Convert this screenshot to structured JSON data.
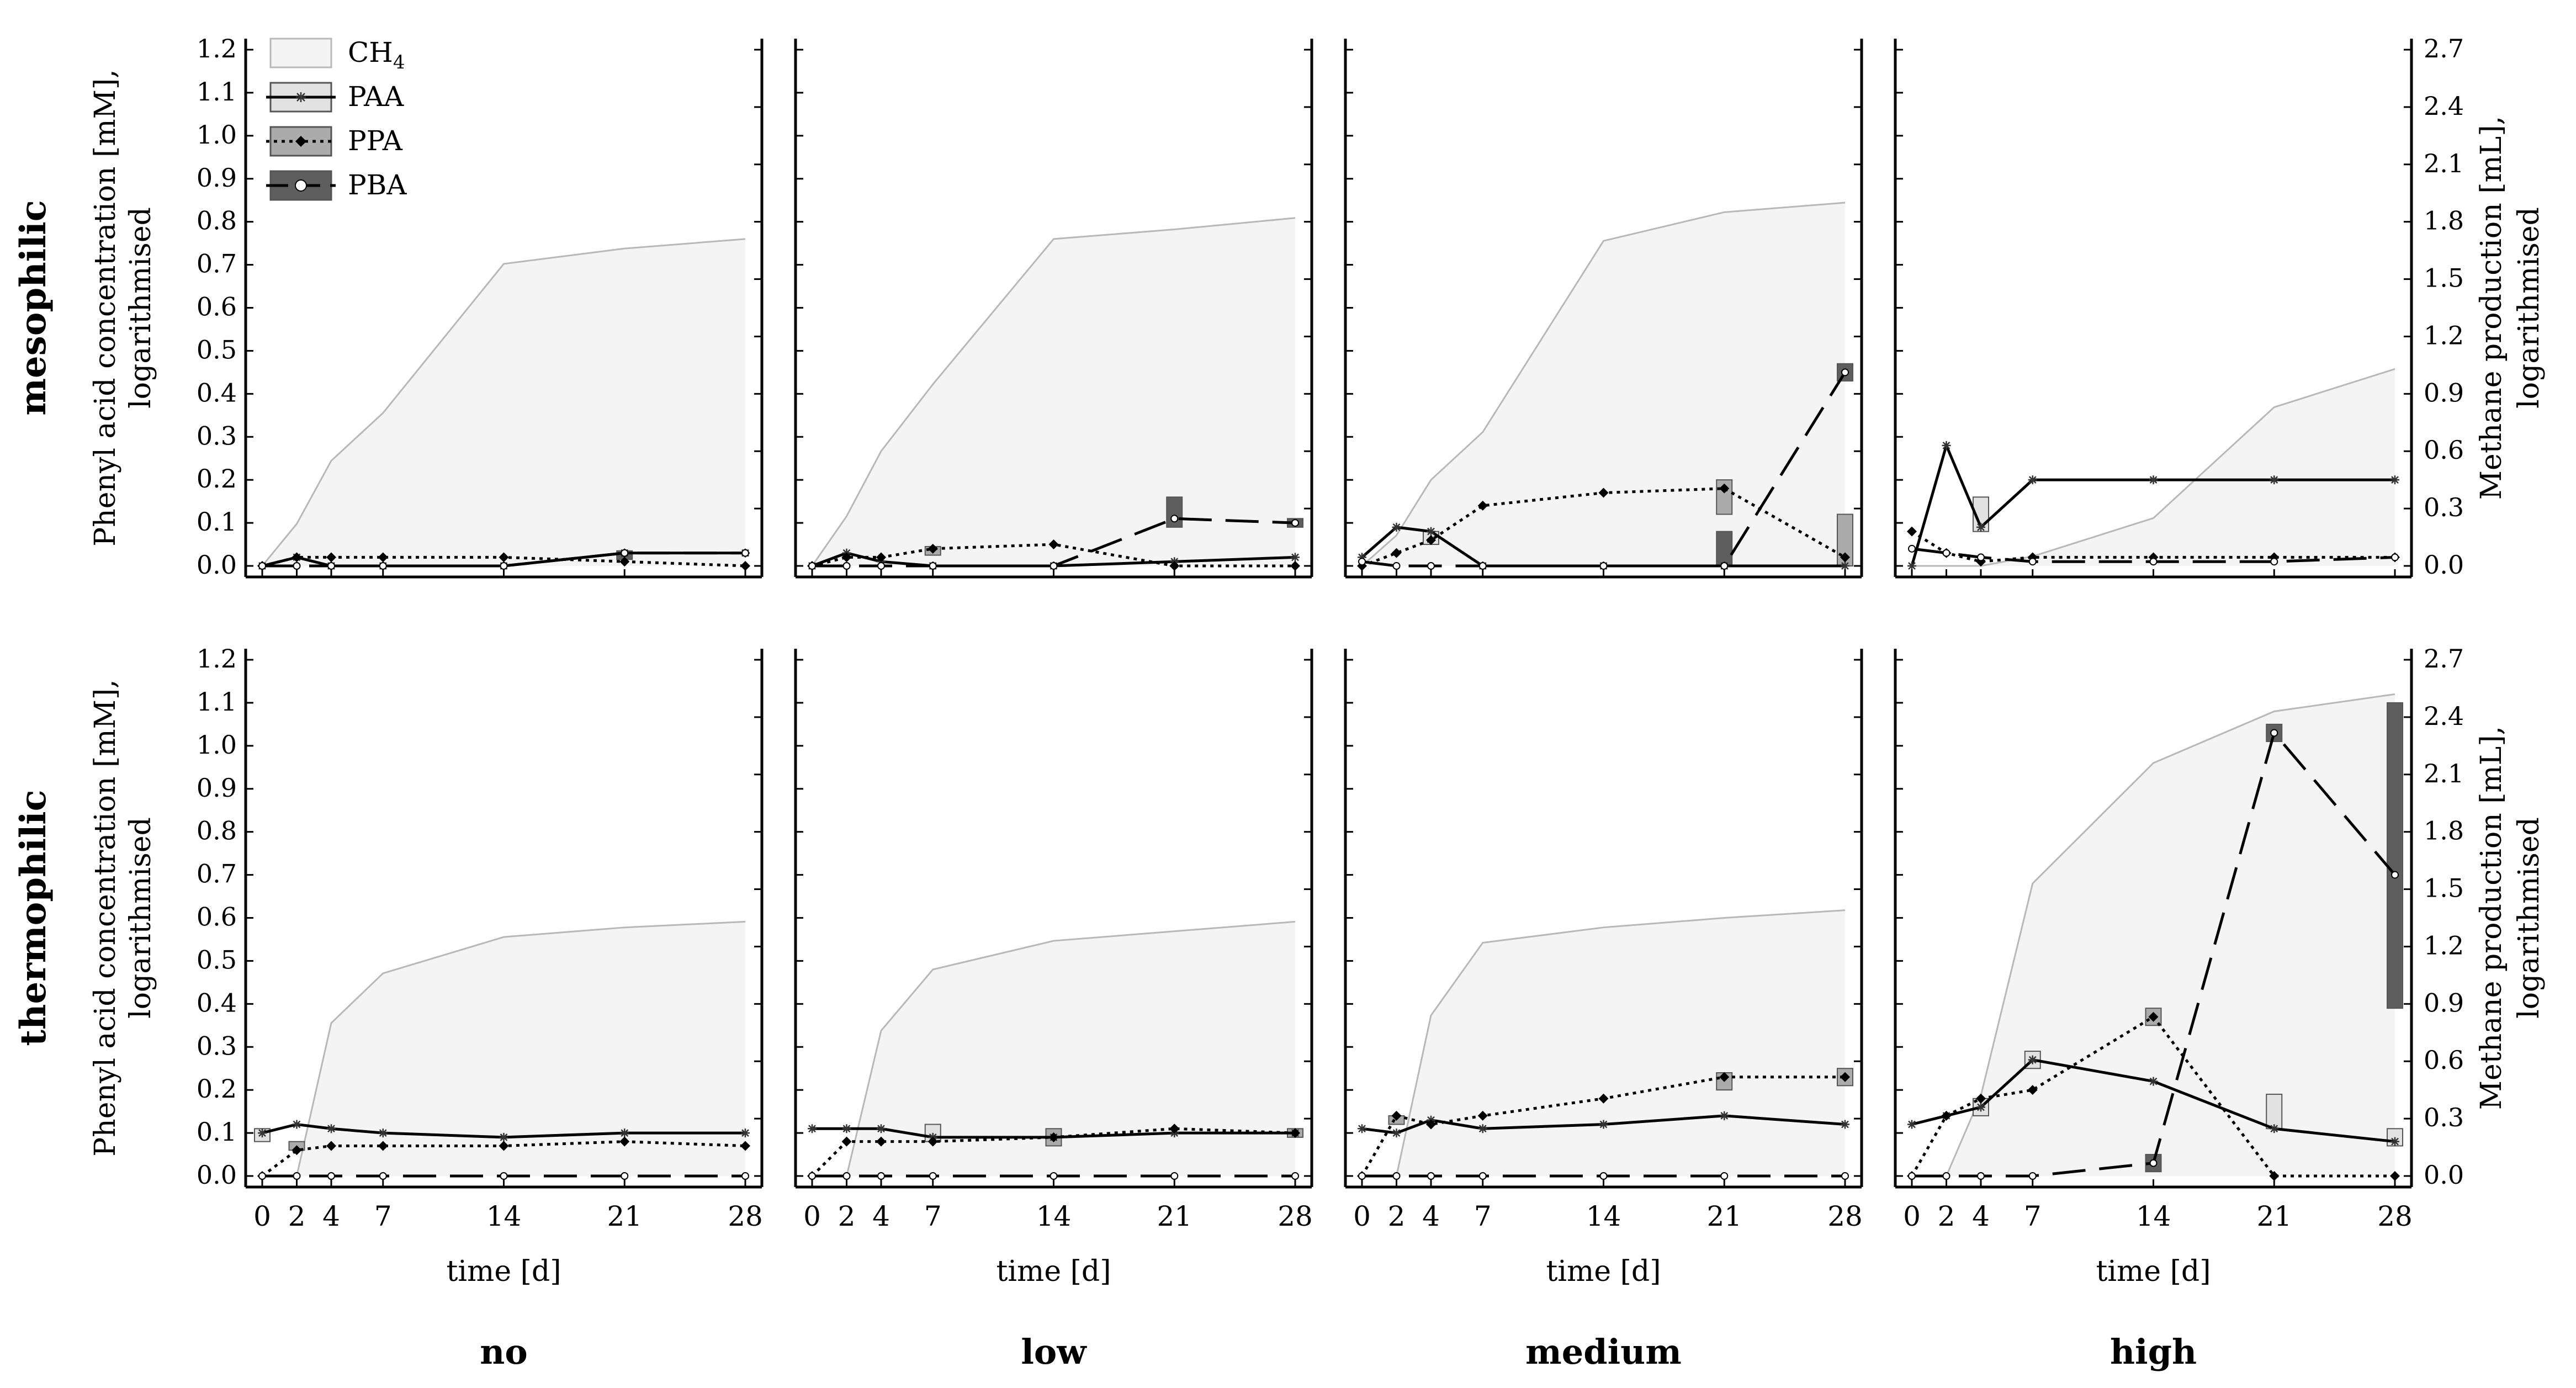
{
  "figure": {
    "row_labels": [
      "mesophilic",
      "thermophilic"
    ],
    "column_labels": [
      "no",
      "low",
      "medium",
      "high"
    ],
    "y_label_left_line1": "Phenyl acid concentration [mM],",
    "y_label_left_line2": "logarithmised",
    "y_label_right_line1": "Methane production [mL],",
    "y_label_right_line2": "logarithmised",
    "x_label": "time [d]",
    "left_axis_ticks": [
      "0.0",
      "0.1",
      "0.2",
      "0.3",
      "0.4",
      "0.5",
      "0.6",
      "0.7",
      "0.8",
      "0.9",
      "1.0",
      "1.1",
      "1.2"
    ],
    "right_axis_ticks": [
      "0.0",
      "0.3",
      "0.6",
      "0.9",
      "1.2",
      "1.5",
      "1.8",
      "2.1",
      "2.4",
      "2.7"
    ],
    "x_ticks": [
      "0",
      "2",
      "4",
      "7",
      "14",
      "21",
      "28"
    ],
    "legend": [
      {
        "label": "CH",
        "sub": "4",
        "key": "ch4"
      },
      {
        "label": "PAA",
        "key": "paa"
      },
      {
        "label": "PPA",
        "key": "ppa"
      },
      {
        "label": "PBA",
        "key": "pba"
      }
    ]
  },
  "colors": {
    "ch4_fill": "#f4f4f4",
    "ch4_line": "#b8b8b8",
    "paa_box": "#e2e2e2",
    "ppa_box": "#ababab",
    "pba_box": "#5e5e5e",
    "line": "#000000"
  },
  "chart_data": {
    "type": "line",
    "layout": "2x4 small multiples (rows: temperature regime, columns: phenyl acid dose)",
    "x": [
      0,
      2,
      4,
      7,
      14,
      21,
      28
    ],
    "xlabel": "time [d]",
    "ylabel": "Phenyl acid concentration [mM], logarithmised",
    "ylim": [
      0,
      1.2
    ],
    "y2label": "Methane production [mL], logarithmised",
    "y2lim": [
      0,
      2.7
    ],
    "panels": [
      {
        "row": "mesophilic",
        "col": "no",
        "ch4": [
          0,
          0.22,
          0.55,
          0.8,
          1.58,
          1.66,
          1.71
        ],
        "paa": [
          0.0,
          0.02,
          0.0,
          0.0,
          0.0,
          0.03,
          0.03
        ],
        "ppa": [
          0.0,
          0.02,
          0.02,
          0.02,
          0.02,
          0.01,
          0.0
        ],
        "pba": [
          0.0,
          0.0,
          0.0,
          0.0,
          0.0,
          0.03,
          0.03
        ],
        "boxes": [
          {
            "series": "pba",
            "x": 21,
            "y": 0.025,
            "range": [
              0.015,
              0.035
            ]
          }
        ]
      },
      {
        "row": "mesophilic",
        "col": "low",
        "ch4": [
          0,
          0.26,
          0.6,
          0.95,
          1.71,
          1.76,
          1.82
        ],
        "paa": [
          0.0,
          0.03,
          0.01,
          0.0,
          0.0,
          0.01,
          0.02
        ],
        "ppa": [
          0.0,
          0.02,
          0.02,
          0.04,
          0.05,
          0.0,
          0.0
        ],
        "pba": [
          0.0,
          0.0,
          0.0,
          0.0,
          0.0,
          0.11,
          0.1
        ],
        "boxes": [
          {
            "series": "ppa",
            "x": 7,
            "y": 0.035,
            "range": [
              0.025,
              0.045
            ]
          },
          {
            "series": "pba",
            "x": 21,
            "y": 0.125,
            "range": [
              0.09,
              0.16
            ]
          },
          {
            "series": "pba",
            "x": 28,
            "y": 0.1,
            "range": [
              0.09,
              0.11
            ]
          }
        ]
      },
      {
        "row": "mesophilic",
        "col": "medium",
        "ch4": [
          0,
          0.16,
          0.45,
          0.7,
          1.7,
          1.85,
          1.9
        ],
        "paa": [
          0.02,
          0.09,
          0.08,
          0.0,
          0.0,
          0.0,
          0.0
        ],
        "ppa": [
          0.0,
          0.03,
          0.06,
          0.14,
          0.17,
          0.18,
          0.02
        ],
        "pba": [
          0.01,
          0.0,
          0.0,
          0.0,
          0.0,
          0.0,
          0.45
        ],
        "boxes": [
          {
            "series": "paa",
            "x": 4,
            "y": 0.065,
            "range": [
              0.05,
              0.08
            ]
          },
          {
            "series": "ppa",
            "x": 21,
            "y": 0.16,
            "range": [
              0.12,
              0.2
            ]
          },
          {
            "series": "pba",
            "x": 21,
            "y": 0.04,
            "range": [
              0.0,
              0.08
            ]
          },
          {
            "series": "ppa",
            "x": 28,
            "y": 0.06,
            "range": [
              0.0,
              0.12
            ]
          },
          {
            "series": "pba",
            "x": 28,
            "y": 0.45,
            "range": [
              0.43,
              0.47
            ]
          }
        ]
      },
      {
        "row": "mesophilic",
        "col": "high",
        "ch4": [
          0,
          0,
          0,
          0.05,
          0.25,
          0.83,
          1.03
        ],
        "paa": [
          0.0,
          0.28,
          0.09,
          0.2,
          0.2,
          0.2,
          0.2
        ],
        "ppa": [
          0.08,
          0.03,
          0.01,
          0.02,
          0.02,
          0.02,
          0.02
        ],
        "pba": [
          0.04,
          0.03,
          0.02,
          0.01,
          0.01,
          0.01,
          0.02
        ],
        "boxes": [
          {
            "series": "paa",
            "x": 4,
            "y": 0.12,
            "range": [
              0.08,
              0.16
            ]
          }
        ]
      },
      {
        "row": "thermophilic",
        "col": "no",
        "ch4": [
          0,
          0,
          0.8,
          1.06,
          1.25,
          1.3,
          1.33
        ],
        "paa": [
          0.1,
          0.12,
          0.11,
          0.1,
          0.09,
          0.1,
          0.1
        ],
        "ppa": [
          0.0,
          0.06,
          0.07,
          0.07,
          0.07,
          0.08,
          0.07
        ],
        "pba": [
          0.0,
          0.0,
          0.0,
          0.0,
          0.0,
          0.0,
          0.0
        ],
        "boxes": [
          {
            "series": "paa",
            "x": 0,
            "y": 0.095,
            "range": [
              0.08,
              0.11
            ]
          },
          {
            "series": "ppa",
            "x": 2,
            "y": 0.07,
            "range": [
              0.06,
              0.08
            ]
          }
        ]
      },
      {
        "row": "thermophilic",
        "col": "low",
        "ch4": [
          0,
          0,
          0.76,
          1.08,
          1.23,
          1.28,
          1.33
        ],
        "paa": [
          0.11,
          0.11,
          0.11,
          0.09,
          0.09,
          0.1,
          0.1
        ],
        "ppa": [
          0.0,
          0.08,
          0.08,
          0.08,
          0.09,
          0.11,
          0.1
        ],
        "pba": [
          0.0,
          0.0,
          0.0,
          0.0,
          0.0,
          0.0,
          0.0
        ],
        "boxes": [
          {
            "series": "paa",
            "x": 7,
            "y": 0.1,
            "range": [
              0.08,
              0.12
            ]
          },
          {
            "series": "ppa",
            "x": 14,
            "y": 0.09,
            "range": [
              0.07,
              0.11
            ]
          },
          {
            "series": "ppa",
            "x": 28,
            "y": 0.1,
            "range": [
              0.09,
              0.11
            ]
          }
        ]
      },
      {
        "row": "thermophilic",
        "col": "medium",
        "ch4": [
          0,
          0,
          0.84,
          1.22,
          1.3,
          1.35,
          1.39
        ],
        "paa": [
          0.11,
          0.1,
          0.13,
          0.11,
          0.12,
          0.14,
          0.12
        ],
        "ppa": [
          0.0,
          0.14,
          0.12,
          0.14,
          0.18,
          0.23,
          0.23
        ],
        "pba": [
          0.0,
          0.0,
          0.0,
          0.0,
          0.0,
          0.0,
          0.0
        ],
        "boxes": [
          {
            "series": "ppa",
            "x": 2,
            "y": 0.13,
            "range": [
              0.12,
              0.14
            ]
          },
          {
            "series": "ppa",
            "x": 21,
            "y": 0.22,
            "range": [
              0.2,
              0.24
            ]
          },
          {
            "series": "ppa",
            "x": 28,
            "y": 0.23,
            "range": [
              0.21,
              0.25
            ]
          }
        ]
      },
      {
        "row": "thermophilic",
        "col": "high",
        "ch4": [
          0,
          0,
          0.42,
          1.53,
          2.16,
          2.43,
          2.52
        ],
        "paa": [
          0.12,
          0.14,
          0.16,
          0.27,
          0.22,
          0.11,
          0.08
        ],
        "ppa": [
          0.0,
          0.14,
          0.18,
          0.2,
          0.37,
          0.0,
          0.0
        ],
        "pba": [
          0.0,
          0.0,
          0.0,
          0.0,
          0.03,
          1.03,
          0.7
        ],
        "boxes": [
          {
            "series": "paa",
            "x": 4,
            "y": 0.16,
            "range": [
              0.14,
              0.18
            ]
          },
          {
            "series": "paa",
            "x": 7,
            "y": 0.27,
            "range": [
              0.25,
              0.29
            ]
          },
          {
            "series": "ppa",
            "x": 14,
            "y": 0.37,
            "range": [
              0.35,
              0.39
            ]
          },
          {
            "series": "pba",
            "x": 14,
            "y": 0.03,
            "range": [
              0.01,
              0.05
            ]
          },
          {
            "series": "pba",
            "x": 21,
            "y": 1.03,
            "range": [
              1.01,
              1.05
            ]
          },
          {
            "series": "paa",
            "x": 21,
            "y": 0.15,
            "range": [
              0.11,
              0.19
            ]
          },
          {
            "series": "paa",
            "x": 28,
            "y": 0.09,
            "range": [
              0.07,
              0.11
            ]
          },
          {
            "series": "pba",
            "x": 28,
            "y": 0.7,
            "range": [
              0.39,
              1.1
            ]
          }
        ]
      }
    ]
  }
}
